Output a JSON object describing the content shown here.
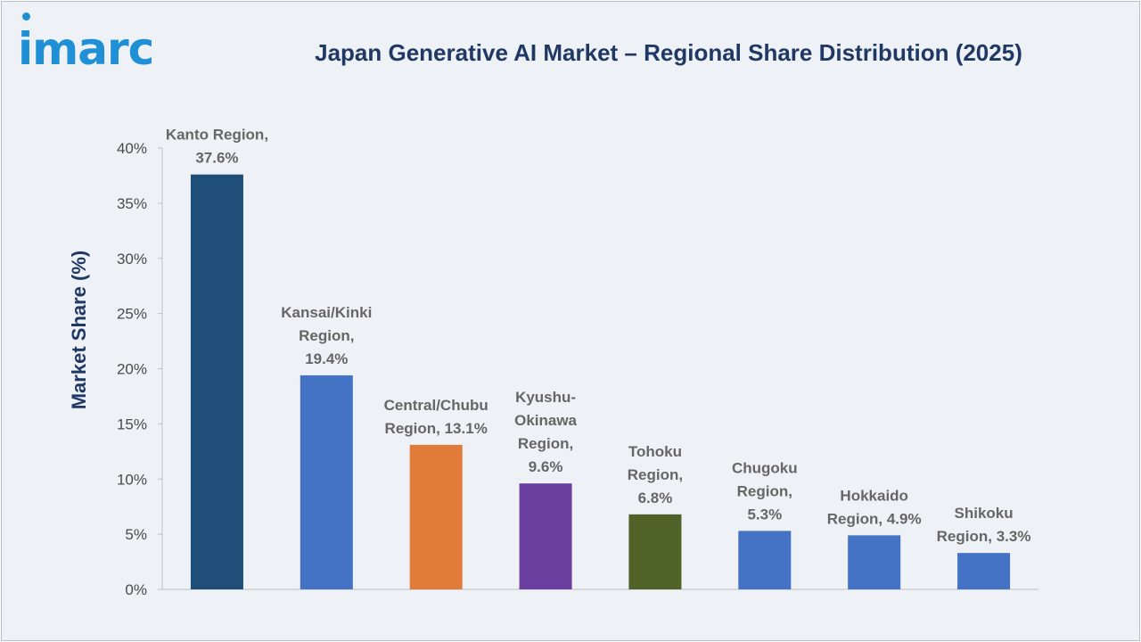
{
  "brand": {
    "logo_text": "imarc",
    "accent": "#1f8fd6"
  },
  "chart_data": {
    "type": "bar",
    "title": "Japan Generative AI Market – Regional Share Distribution (2025)",
    "xlabel": "",
    "ylabel": "Market Share (%)",
    "ylim": [
      0,
      40
    ],
    "yticks": [
      0,
      5,
      10,
      15,
      20,
      25,
      30,
      35,
      40
    ],
    "ytick_labels": [
      "0%",
      "5%",
      "10%",
      "15%",
      "20%",
      "25%",
      "30%",
      "35%",
      "40%"
    ],
    "grid": false,
    "categories": [
      "Kanto Region",
      "Kansai/Kinki Region",
      "Central/Chubu Region",
      "Kyushu-Okinawa Region",
      "Tohoku Region",
      "Chugoku Region",
      "Hokkaido Region",
      "Shikoku Region"
    ],
    "values": [
      37.6,
      19.4,
      13.1,
      9.6,
      6.8,
      5.3,
      4.9,
      3.3
    ],
    "colors": [
      "#1f4e79",
      "#4472c4",
      "#e07b39",
      "#6b3fa0",
      "#4f6228",
      "#4472c4",
      "#4472c4",
      "#4472c4"
    ],
    "data_labels": [
      [
        "Kanto Region,",
        "37.6%"
      ],
      [
        "Kansai/Kinki",
        "Region,",
        "19.4%"
      ],
      [
        "Central/Chubu",
        "Region, 13.1%"
      ],
      [
        "Kyushu-",
        "Okinawa",
        "Region,",
        "9.6%"
      ],
      [
        "Tohoku",
        "Region,",
        "6.8%"
      ],
      [
        "Chugoku",
        "Region,",
        "5.3%"
      ],
      [
        "Hokkaido",
        "Region, 4.9%"
      ],
      [
        "Shikoku",
        "Region, 3.3%"
      ]
    ]
  }
}
